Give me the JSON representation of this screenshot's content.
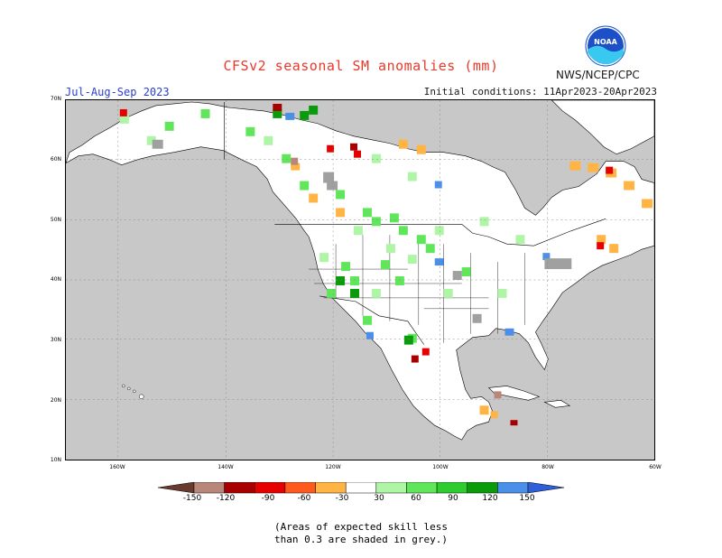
{
  "header": {
    "title": "CFSv2 seasonal SM anomalies (mm)",
    "agency": "NWS/NCEP/CPC",
    "season": "Jul-Aug-Sep 2023",
    "initial_conditions": "Initial conditions: 11Apr2023-20Apr2023",
    "logo_text": "NOAA"
  },
  "map": {
    "lat_labels": [
      "70N",
      "60N",
      "50N",
      "40N",
      "30N",
      "20N",
      "10N"
    ],
    "lon_labels": [
      "160W",
      "140W",
      "120W",
      "100W",
      "80W",
      "60W"
    ],
    "ocean_color": "#c8c8c8",
    "land_color": "#ffffff"
  },
  "colorbar": {
    "labels": [
      "-150",
      "-120",
      "-90",
      "-60",
      "-30",
      "30",
      "60",
      "90",
      "120",
      "150"
    ],
    "colors": [
      "#6b3a2e",
      "#b9877a",
      "#a80000",
      "#e60000",
      "#ff5a1e",
      "#ffb444",
      "#ffffff",
      "#aef5a6",
      "#5fe65a",
      "#2ecc2e",
      "#0a9b0a",
      "#4a8fe8",
      "#2e5fd8"
    ]
  },
  "note": {
    "line1": "(Areas of expected skill less",
    "line2": "than 0.3 are shaded in grey.)"
  }
}
